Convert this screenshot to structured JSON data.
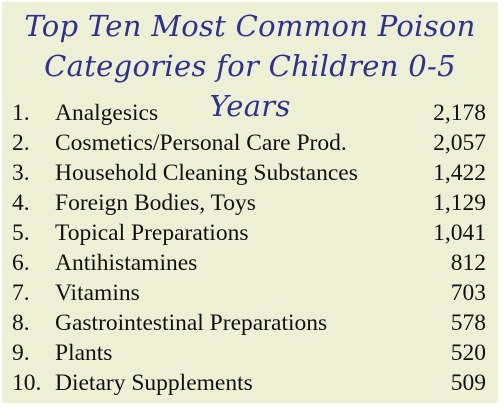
{
  "title_lines": [
    "Top Ten Most Common Poison",
    "Categories for Children 0-5 Years"
  ],
  "items": [
    {
      "rank": "1.",
      "name": "Analgesics",
      "value": "2,178"
    },
    {
      "rank": "2.",
      "name": "Cosmetics/Personal Care Prod.",
      "value": "2,057"
    },
    {
      "rank": "3.",
      "name": "Household Cleaning Substances",
      "value": "1,422"
    },
    {
      "rank": "4.",
      "name": "Foreign Bodies, Toys",
      "value": "1,129"
    },
    {
      "rank": "5.",
      "name": "Topical Preparations",
      "value": "1,041"
    },
    {
      "rank": "6.",
      "name": "Antihistamines",
      "value": "812"
    },
    {
      "rank": "7.",
      "name": "Vitamins",
      "value": "703"
    },
    {
      "rank": "8.",
      "name": "Gastrointestinal Preparations",
      "value": "578"
    },
    {
      "rank": "9.",
      "name": "Plants",
      "value": "520"
    },
    {
      "rank": "10.",
      "name": "Dietary Supplements",
      "value": "509"
    }
  ],
  "colors": {
    "background": "#eef0d6",
    "title": "#2e3192",
    "text": "#111111"
  }
}
